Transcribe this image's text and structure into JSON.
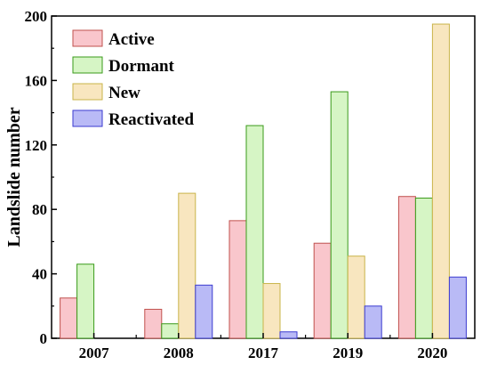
{
  "chart_data": {
    "type": "bar",
    "categories": [
      "2007",
      "2008",
      "2017",
      "2019",
      "2020"
    ],
    "series": [
      {
        "name": "Active",
        "values": [
          25,
          18,
          73,
          59,
          88
        ],
        "fill": "#f9c6cc",
        "stroke": "#c0504d"
      },
      {
        "name": "Dormant",
        "values": [
          46,
          9,
          132,
          153,
          87
        ],
        "fill": "#d6f5c5",
        "stroke": "#3a9a1a"
      },
      {
        "name": "New",
        "values": [
          0,
          90,
          34,
          51,
          195
        ],
        "fill": "#f8e6bf",
        "stroke": "#c9b44a"
      },
      {
        "name": "Reactivated",
        "values": [
          0,
          33,
          4,
          20,
          38
        ],
        "fill": "#b9baf6",
        "stroke": "#3a3ad0"
      }
    ],
    "title": "",
    "xlabel": "",
    "ylabel": "Landslide number",
    "ylim": [
      0,
      200
    ],
    "yticks": [
      0,
      40,
      80,
      120,
      160,
      200
    ],
    "grid": false,
    "legend_position": "top-left"
  }
}
